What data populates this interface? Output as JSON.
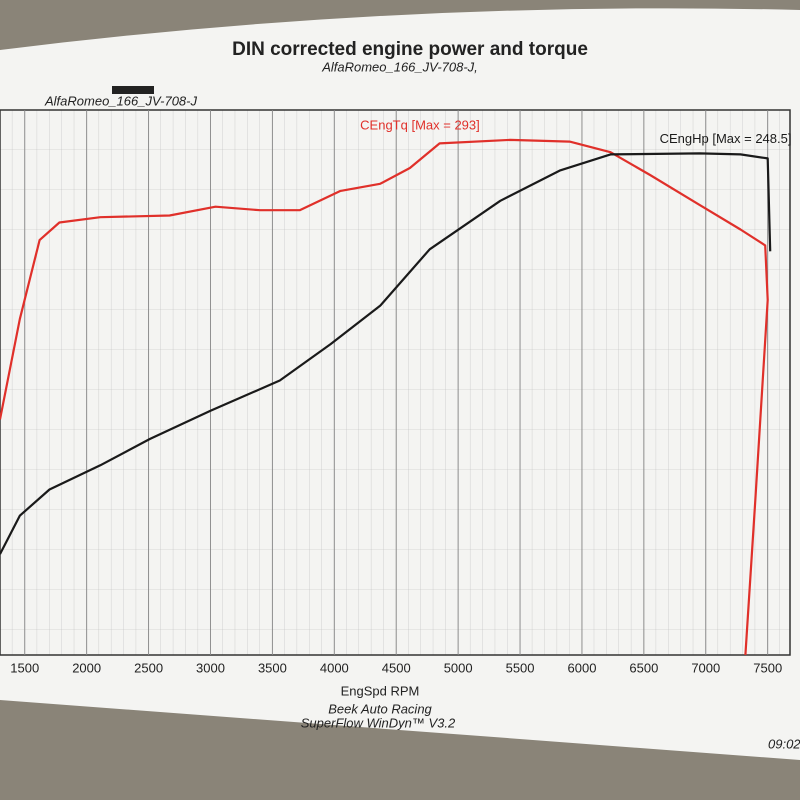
{
  "chart_data": {
    "type": "line",
    "title": "DIN corrected engine power and torque",
    "subtitle": "AlfaRomeo_166_JV-708-J,",
    "header": "AlfaRomeo_166_JV-708-J",
    "x_label": "EngSpd RPM",
    "footer": [
      "Beek Auto Racing",
      "SuperFlow WinDyn™ V3.2"
    ],
    "time": "09:02",
    "xlim": [
      1300,
      7680
    ],
    "xticks": [
      1500,
      2000,
      2500,
      3000,
      3500,
      4000,
      4500,
      5000,
      5500,
      6000,
      6500,
      7000,
      7500
    ],
    "ylim": [
      0,
      310
    ],
    "y2lim": [
      0,
      270
    ],
    "series": [
      {
        "name": "CEngTq [Max = 293]",
        "color": "#e0302a",
        "x": [
          1300,
          1460,
          1620,
          1780,
          2110,
          2670,
          3040,
          3400,
          3720,
          4050,
          4370,
          4610,
          4850,
          5420,
          5900,
          6230,
          6550,
          6950,
          7280,
          7480,
          7500,
          7400,
          7320
        ],
        "values": [
          134,
          191,
          236,
          246,
          249,
          250,
          255,
          253,
          253,
          264,
          268,
          277,
          291,
          293,
          292,
          286,
          273,
          256,
          242,
          233,
          202,
          88,
          0
        ]
      },
      {
        "name": "CEngHp [Max = 248.5]",
        "color": "#1a1a1a",
        "axis": "y2",
        "x": [
          1300,
          1460,
          1700,
          2110,
          2510,
          3000,
          3560,
          3970,
          4370,
          4770,
          5340,
          5820,
          6230,
          6950,
          7280,
          7500,
          7520
        ],
        "values": [
          50,
          69,
          82,
          94,
          107,
          121,
          136,
          154,
          173,
          201,
          225,
          240,
          248,
          248.5,
          248,
          246,
          200
        ]
      }
    ]
  }
}
